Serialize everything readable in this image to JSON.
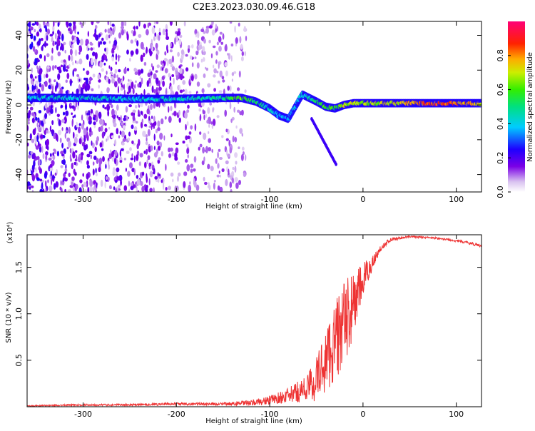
{
  "page_title": "C2E3.2023.030.09.46.G18",
  "chart_data": [
    {
      "type": "heatmap",
      "title": "C2E3.2023.030.09.46.G18",
      "xlabel": "Height of straight line (km)",
      "ylabel": "Frequency (Hz)",
      "xlim": [
        -360,
        127
      ],
      "ylim": [
        -50,
        48
      ],
      "x_ticks": [
        -300,
        -200,
        -100,
        0,
        100
      ],
      "y_ticks": [
        -40,
        -20,
        0,
        20,
        40
      ],
      "colorbar": {
        "label": "Normalized spectral amplitude",
        "range": [
          0,
          1
        ],
        "ticks": [
          0.0,
          0.2,
          0.4,
          0.6,
          0.8
        ],
        "tick_labels": [
          "0.0",
          "0.2",
          "0.4",
          "0.6",
          "0.8"
        ]
      },
      "ridge": {
        "x": [
          -355,
          -300,
          -250,
          -200,
          -150,
          -130,
          -115,
          -100,
          -90,
          -80,
          -65,
          -50,
          -40,
          -30,
          -20,
          -10,
          0,
          20,
          50,
          80,
          100,
          127
        ],
        "y": [
          4,
          4,
          3.5,
          3.5,
          4,
          4,
          2,
          -2,
          -6,
          -8,
          6,
          2,
          -1,
          -2,
          0,
          1,
          1,
          1,
          1,
          1,
          1,
          1
        ],
        "amplitude": [
          0.45,
          0.45,
          0.45,
          0.45,
          0.5,
          0.65,
          0.55,
          0.45,
          0.4,
          0.35,
          0.45,
          0.55,
          0.6,
          0.6,
          0.7,
          0.75,
          0.7,
          0.7,
          0.8,
          0.9,
          0.85,
          0.75
        ]
      }
    },
    {
      "type": "line",
      "xlabel": "Height of straight line (km)",
      "ylabel": "SNR (10 * v/v)",
      "y_multiplier": "(x10⁴)",
      "xlim": [
        -360,
        127
      ],
      "ylim": [
        0,
        1.85
      ],
      "x_ticks": [
        -300,
        -200,
        -100,
        0,
        100
      ],
      "y_ticks": [
        0.5,
        1.0,
        1.5
      ],
      "y_tick_labels": [
        "0.5",
        "1.0",
        "1.5"
      ],
      "color": "#ee3333",
      "series": [
        {
          "x": [
            -360,
            -300,
            -250,
            -200,
            -150,
            -120,
            -100,
            -80,
            -60,
            -50,
            -40,
            -30,
            -20,
            -10,
            0,
            10,
            20,
            30,
            50,
            70,
            90,
            110,
            127
          ],
          "y": [
            0.01,
            0.02,
            0.02,
            0.03,
            0.03,
            0.04,
            0.07,
            0.12,
            0.2,
            0.3,
            0.5,
            0.7,
            0.9,
            1.1,
            1.35,
            1.55,
            1.72,
            1.8,
            1.83,
            1.82,
            1.8,
            1.77,
            1.73
          ],
          "noise": [
            0.005,
            0.01,
            0.01,
            0.015,
            0.015,
            0.03,
            0.05,
            0.08,
            0.15,
            0.25,
            0.35,
            0.45,
            0.45,
            0.35,
            0.2,
            0.08,
            0.03,
            0.02,
            0.01,
            0.01,
            0.01,
            0.015,
            0.015
          ]
        }
      ]
    }
  ]
}
